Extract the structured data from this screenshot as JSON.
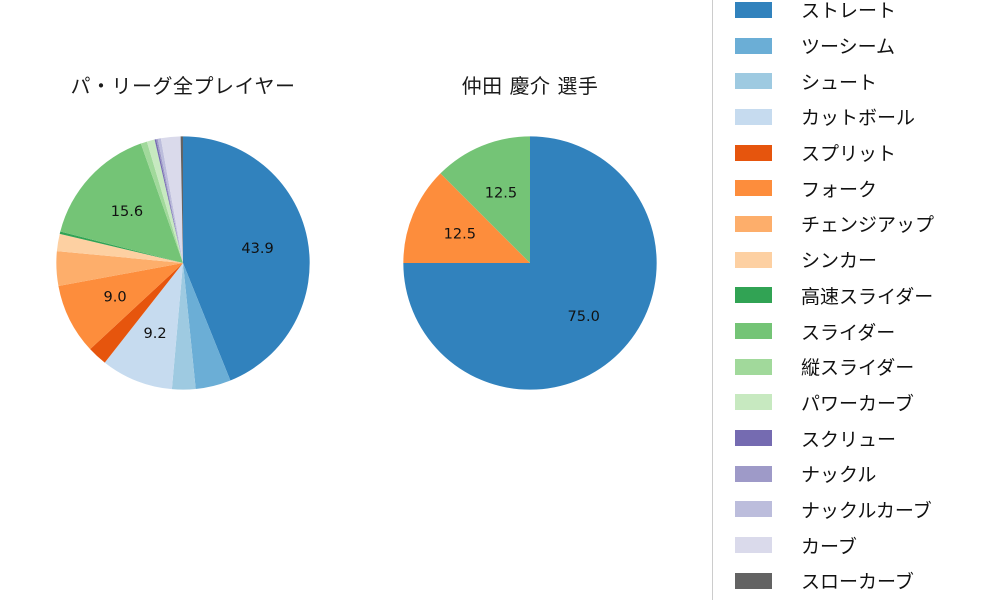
{
  "chart_data": [
    {
      "type": "pie",
      "title": "パ・リーグ全プレイヤー",
      "start_angle": 90,
      "direction": "clockwise",
      "label_distance": 0.6,
      "categories": [
        "ストレート",
        "ツーシーム",
        "シュート",
        "カットボール",
        "スプリット",
        "フォーク",
        "チェンジアップ",
        "シンカー",
        "高速スライダー",
        "スライダー",
        "縦スライダー",
        "パワーカーブ",
        "スクリュー",
        "ナックル",
        "ナックルカーブ",
        "カーブ",
        "スローカーブ"
      ],
      "values": [
        43.9,
        4.5,
        3.0,
        9.2,
        2.5,
        9.0,
        4.4,
        2.2,
        0.3,
        15.6,
        0.8,
        1.0,
        0.2,
        0.2,
        0.4,
        2.5,
        0.3
      ],
      "labels": [
        "43.9",
        "",
        "",
        "9.2",
        "",
        "9.0",
        "",
        "",
        "",
        "15.6",
        "",
        "",
        "",
        "",
        "",
        "",
        ""
      ]
    },
    {
      "type": "pie",
      "title": "仲田 慶介 選手",
      "start_angle": 90,
      "direction": "clockwise",
      "label_distance": 0.6,
      "categories": [
        "ストレート",
        "フォーク",
        "スライダー"
      ],
      "values": [
        75.0,
        12.5,
        12.5
      ],
      "labels": [
        "75.0",
        "12.5",
        "12.5"
      ]
    }
  ],
  "legend": {
    "position": "right",
    "items": [
      {
        "label": "ストレート",
        "color": "#3182bd"
      },
      {
        "label": "ツーシーム",
        "color": "#6baed6"
      },
      {
        "label": "シュート",
        "color": "#9ecae1"
      },
      {
        "label": "カットボール",
        "color": "#c6dbef"
      },
      {
        "label": "スプリット",
        "color": "#e6550d"
      },
      {
        "label": "フォーク",
        "color": "#fd8d3c"
      },
      {
        "label": "チェンジアップ",
        "color": "#fdae6b"
      },
      {
        "label": "シンカー",
        "color": "#fdd0a2"
      },
      {
        "label": "高速スライダー",
        "color": "#31a354"
      },
      {
        "label": "スライダー",
        "color": "#74c476"
      },
      {
        "label": "縦スライダー",
        "color": "#a1d99b"
      },
      {
        "label": "パワーカーブ",
        "color": "#c7e9c0"
      },
      {
        "label": "スクリュー",
        "color": "#756bb1"
      },
      {
        "label": "ナックル",
        "color": "#9e9ac8"
      },
      {
        "label": "ナックルカーブ",
        "color": "#bcbddc"
      },
      {
        "label": "カーブ",
        "color": "#dadaeb"
      },
      {
        "label": "スローカーブ",
        "color": "#636363"
      }
    ]
  },
  "colors": {
    "background": "#ffffff",
    "text": "#111111",
    "legend_border": "#cccccc"
  }
}
